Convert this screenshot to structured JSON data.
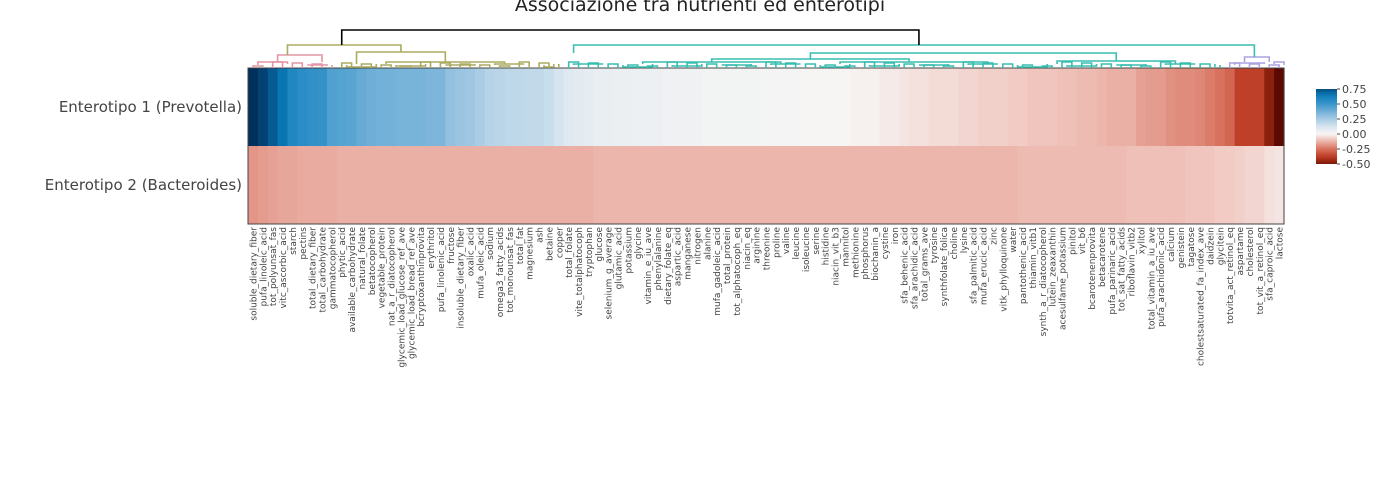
{
  "chart_data": {
    "type": "heatmap",
    "title": "Associazione tra nutrienti ed enterotipi",
    "rows": [
      "Enterotipo 1 (Prevotella)",
      "Enterotipo 2 (Bacteroides)"
    ],
    "columns": [
      "soluble_dietary_fiber",
      "pufa_linoleic_acid",
      "tot_polyunsat_fas",
      "vitc_ascorbic_acid",
      "starch",
      "pectins",
      "total_dietary_fiber",
      "total_carbohydrate",
      "gammatocopherol",
      "phytic_acid",
      "available_carbohydrate",
      "natural_folate",
      "betatocopherol",
      "vegetable_protein",
      "nat_a_r_diatocopherol",
      "glycemic_load_glucose_ref_ave",
      "glycemic_load_bread_ref_ave",
      "bcryptoxanthinprovita",
      "erythritol",
      "pufa_linolenic_acid",
      "fructose",
      "insoluble_dietary_fiber",
      "oxalic_acid",
      "mufa_oleic_acid",
      "sodium",
      "omega3_fatty_acids",
      "tot_monounsat_fas",
      "total_fat",
      "magnesium",
      "ash",
      "betaine",
      "copper",
      "total_folate",
      "vite_totalphatocoph",
      "tryptophan",
      "glucose",
      "selenium_g_average",
      "glutamic_acid",
      "potassium",
      "glycine",
      "vitamin_e_iu_ave",
      "phenylalanine",
      "dietary_folate_eq",
      "aspartic_acid",
      "manganese",
      "nitrogen",
      "alanine",
      "mufa_gadoleic_acid",
      "total_protein",
      "tot_alphatocoph_eq",
      "niacin_eq",
      "arginine",
      "threonine",
      "proline",
      "valine",
      "leucine",
      "isoleucine",
      "serine",
      "histidine",
      "niacin_vit_b3",
      "mannitol",
      "methionine",
      "phosphorus",
      "biochanin_a",
      "cystine",
      "iron",
      "sfa_behenic_acid",
      "sfa_arachidic_acid",
      "total_grams_ave",
      "tyrosine",
      "synthfolate_folica",
      "choline",
      "lysine",
      "sfa_palmitic_acid",
      "mufa_erucic_acid",
      "zinc",
      "vitk_phylloquinone",
      "water",
      "pantothenic_acid",
      "thiamin_vitb1",
      "synth_a_r_diatocopherol",
      "lutein_zeaxanthin",
      "acesulfame_potassium",
      "pinitol",
      "vit_b6",
      "bcarotenenprovita",
      "betacarotene",
      "pufa_parinaric_acid",
      "tot_sat_fatty_acids",
      "riboflavin_vitb2",
      "xylitol",
      "total_vitamin_a_iu_ave",
      "pufa_arachidonic_acid",
      "calcium",
      "genistein",
      "tagatose",
      "cholestsaturated_fa_index_ave",
      "daidzein",
      "glycitein",
      "totvita_act_retinol_eq",
      "aspartame",
      "cholesterol",
      "tot_vit_a_retinol_eq",
      "sfa_caproic_acid",
      "lactose"
    ],
    "values": [
      [
        0.82,
        0.78,
        0.72,
        0.66,
        0.58,
        0.55,
        0.53,
        0.52,
        0.45,
        0.44,
        0.43,
        0.4,
        0.38,
        0.37,
        0.37,
        0.36,
        0.36,
        0.36,
        0.35,
        0.35,
        0.3,
        0.28,
        0.27,
        0.24,
        0.21,
        0.2,
        0.19,
        0.19,
        0.18,
        0.18,
        0.16,
        0.13,
        0.1,
        0.08,
        0.07,
        0.06,
        0.06,
        0.05,
        0.05,
        0.04,
        0.04,
        0.04,
        0.03,
        0.03,
        0.03,
        0.03,
        0.02,
        0.02,
        0.02,
        0.02,
        0.02,
        0.02,
        0.01,
        0.01,
        0.01,
        0.01,
        0.0,
        0.0,
        0.0,
        0.0,
        0.0,
        -0.01,
        -0.01,
        -0.01,
        -0.02,
        -0.02,
        -0.03,
        -0.04,
        -0.04,
        -0.05,
        -0.05,
        -0.05,
        -0.06,
        -0.06,
        -0.07,
        -0.07,
        -0.07,
        -0.08,
        -0.08,
        -0.09,
        -0.09,
        -0.09,
        -0.1,
        -0.1,
        -0.11,
        -0.11,
        -0.12,
        -0.13,
        -0.13,
        -0.13,
        -0.16,
        -0.17,
        -0.17,
        -0.19,
        -0.2,
        -0.2,
        -0.21,
        -0.23,
        -0.25,
        -0.28,
        -0.37,
        -0.37,
        -0.37,
        -0.47,
        -0.55
      ],
      [
        -0.18,
        -0.17,
        -0.16,
        -0.15,
        -0.15,
        -0.14,
        -0.14,
        -0.14,
        -0.14,
        -0.13,
        -0.13,
        -0.13,
        -0.13,
        -0.13,
        -0.13,
        -0.13,
        -0.13,
        -0.13,
        -0.13,
        -0.13,
        -0.13,
        -0.13,
        -0.13,
        -0.13,
        -0.13,
        -0.13,
        -0.13,
        -0.13,
        -0.13,
        -0.13,
        -0.13,
        -0.13,
        -0.13,
        -0.13,
        -0.13,
        -0.12,
        -0.12,
        -0.12,
        -0.12,
        -0.12,
        -0.12,
        -0.12,
        -0.12,
        -0.12,
        -0.12,
        -0.12,
        -0.12,
        -0.12,
        -0.12,
        -0.12,
        -0.12,
        -0.12,
        -0.12,
        -0.12,
        -0.12,
        -0.12,
        -0.12,
        -0.12,
        -0.12,
        -0.12,
        -0.12,
        -0.12,
        -0.12,
        -0.12,
        -0.12,
        -0.12,
        -0.12,
        -0.12,
        -0.12,
        -0.12,
        -0.12,
        -0.12,
        -0.12,
        -0.12,
        -0.12,
        -0.12,
        -0.12,
        -0.12,
        -0.11,
        -0.11,
        -0.11,
        -0.11,
        -0.11,
        -0.11,
        -0.11,
        -0.11,
        -0.11,
        -0.11,
        -0.11,
        -0.1,
        -0.1,
        -0.1,
        -0.1,
        -0.1,
        -0.1,
        -0.09,
        -0.09,
        -0.09,
        -0.08,
        -0.08,
        -0.07,
        -0.06,
        -0.06,
        -0.04,
        -0.03
      ]
    ],
    "colorbar": {
      "min": -0.5,
      "max": 0.75,
      "ticks": [
        "0.75",
        "0.50",
        "0.25",
        "0.00",
        "-0.25",
        "-0.50"
      ],
      "tick_values": [
        0.75,
        0.5,
        0.25,
        0,
        -0.25,
        -0.5
      ]
    },
    "colorscale": [
      [
        -0.55,
        "#5a0a00"
      ],
      [
        -0.4,
        "#b8341b"
      ],
      [
        -0.25,
        "#d8725e"
      ],
      [
        -0.1,
        "#efc0b8"
      ],
      [
        0.0,
        "#f7f5f4"
      ],
      [
        0.12,
        "#d9e6f0"
      ],
      [
        0.3,
        "#93c0df"
      ],
      [
        0.5,
        "#3a96cb"
      ],
      [
        0.65,
        "#0a7ab8"
      ],
      [
        0.82,
        "#00305b"
      ]
    ],
    "dendrogram_colors": {
      "cluster_1": "#e495a5",
      "cluster_2": "#abab60",
      "cluster_3": "#39beb1",
      "cluster_4": "#aca4e2",
      "root": "#000000"
    }
  }
}
